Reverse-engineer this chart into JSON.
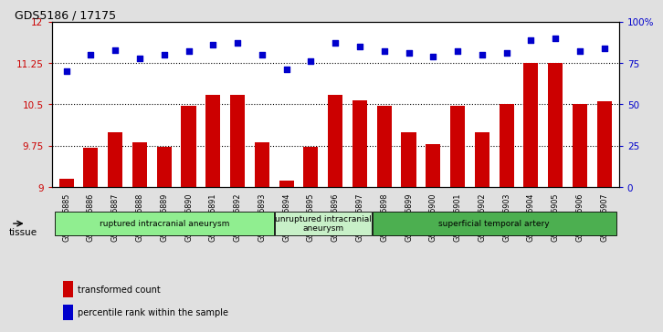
{
  "title": "GDS5186 / 17175",
  "samples": [
    "GSM1306885",
    "GSM1306886",
    "GSM1306887",
    "GSM1306888",
    "GSM1306889",
    "GSM1306890",
    "GSM1306891",
    "GSM1306892",
    "GSM1306893",
    "GSM1306894",
    "GSM1306895",
    "GSM1306896",
    "GSM1306897",
    "GSM1306898",
    "GSM1306899",
    "GSM1306900",
    "GSM1306901",
    "GSM1306902",
    "GSM1306903",
    "GSM1306904",
    "GSM1306905",
    "GSM1306906",
    "GSM1306907"
  ],
  "bar_values": [
    9.15,
    9.72,
    10.0,
    9.82,
    9.73,
    10.48,
    10.68,
    10.67,
    9.82,
    9.12,
    9.73,
    10.67,
    10.58,
    10.47,
    10.0,
    9.78,
    10.48,
    10.0,
    10.5,
    11.25,
    11.25,
    10.5,
    10.55
  ],
  "dot_values": [
    70,
    80,
    83,
    78,
    80,
    82,
    86,
    87,
    80,
    71,
    76,
    87,
    85,
    82,
    81,
    79,
    82,
    80,
    81,
    89,
    90,
    82,
    84
  ],
  "bar_color": "#cc0000",
  "dot_color": "#0000cc",
  "ylim_left": [
    9.0,
    12.0
  ],
  "ylim_right": [
    0,
    100
  ],
  "yticks_left": [
    9.0,
    9.75,
    10.5,
    11.25,
    12.0
  ],
  "ytick_labels_left": [
    "9",
    "9.75",
    "10.5",
    "11.25",
    "12"
  ],
  "yticks_right": [
    0,
    25,
    50,
    75,
    100
  ],
  "ytick_labels_right": [
    "0",
    "25",
    "50",
    "75",
    "100%"
  ],
  "hlines": [
    9.75,
    10.5,
    11.25
  ],
  "groups": [
    {
      "label": "ruptured intracranial aneurysm",
      "start": 0,
      "end": 8,
      "color": "#90ee90"
    },
    {
      "label": "unruptured intracranial\naneurysm",
      "start": 9,
      "end": 12,
      "color": "#c8f0c8"
    },
    {
      "label": "superficial temporal artery",
      "start": 13,
      "end": 22,
      "color": "#4caf50"
    }
  ],
  "tissue_label": "tissue",
  "legend_bar_label": "transformed count",
  "legend_dot_label": "percentile rank within the sample",
  "bg_color": "#e0e0e0",
  "plot_bg_color": "#ffffff"
}
